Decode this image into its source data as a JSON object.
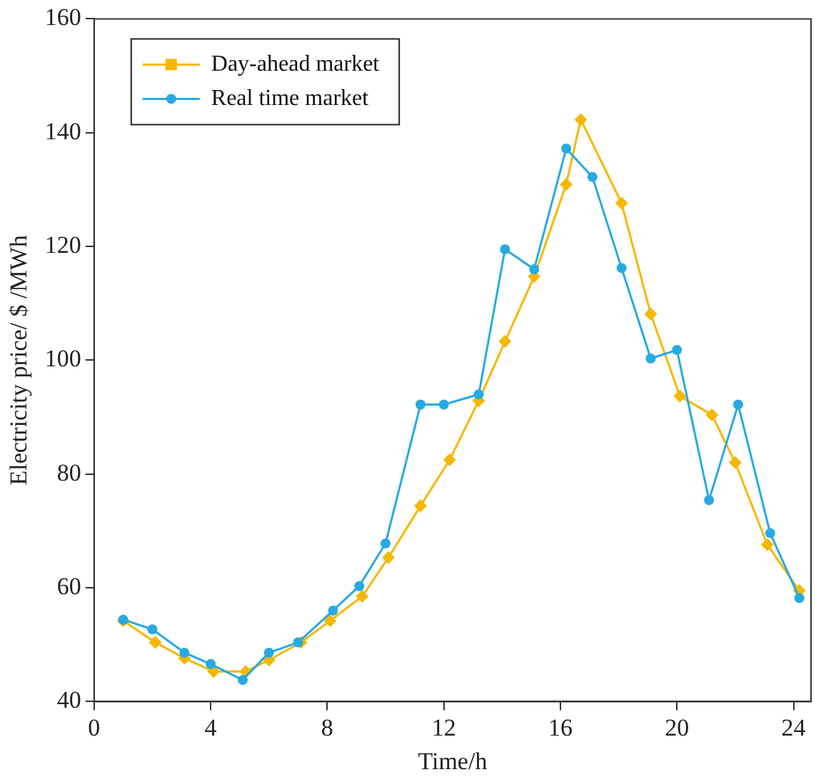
{
  "chart_data": {
    "type": "line",
    "xlabel": "Time/h",
    "ylabel": "Electricity price/ $ /MWh",
    "xlim": [
      0,
      24.6
    ],
    "xticks": [
      0,
      4,
      8,
      12,
      16,
      20,
      24
    ],
    "ylim": [
      40,
      160
    ],
    "yticks": [
      40,
      60,
      80,
      100,
      120,
      140,
      160
    ],
    "grid": false,
    "legend": "top left",
    "line_style": "solid",
    "series": [
      {
        "name": "Day-ahead market",
        "color": "#f5b800",
        "marker": "diamond",
        "x": [
          1,
          2.1,
          3.1,
          4.1,
          5.2,
          6,
          7.1,
          8.1,
          9.2,
          10.1,
          11.2,
          12.2,
          13.2,
          14.1,
          15.1,
          16.2,
          16.7,
          18.1,
          19.1,
          20.1,
          21.2,
          22,
          23.1,
          24.2
        ],
        "values": [
          54.2,
          50.4,
          47.6,
          45.3,
          45.3,
          47.3,
          50.4,
          54.2,
          58.5,
          65.3,
          74.4,
          82.5,
          92.9,
          103.3,
          114.7,
          130.9,
          142.3,
          127.6,
          108.1,
          93.7,
          90.4,
          82,
          67.6,
          59.5
        ]
      },
      {
        "name": "Real time market",
        "color": "#27aae1",
        "marker": "circle",
        "x": [
          1,
          2,
          3.1,
          4,
          5.1,
          6,
          7,
          8.2,
          9.1,
          10,
          11.2,
          12,
          13.2,
          14.1,
          15.1,
          16.2,
          17.1,
          18.1,
          19.1,
          20,
          21.1,
          22.1,
          23.2,
          24.2
        ],
        "values": [
          54.4,
          52.7,
          48.6,
          46.6,
          43.8,
          48.6,
          50.4,
          56,
          60.3,
          67.8,
          92.2,
          92.2,
          94,
          119.5,
          116,
          137.2,
          132.2,
          116.2,
          100.3,
          101.8,
          75.4,
          92.2,
          69.6,
          58.2
        ]
      }
    ]
  }
}
